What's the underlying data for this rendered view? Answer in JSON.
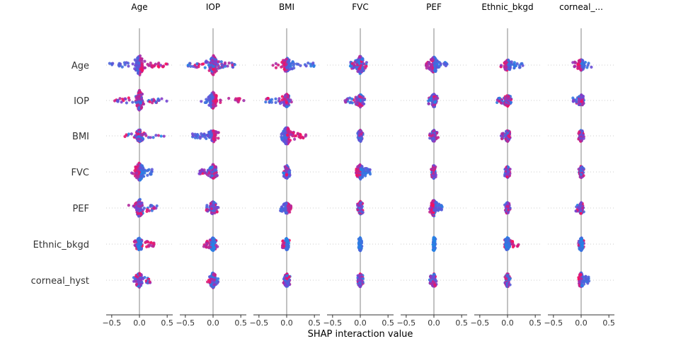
{
  "chart_data": {
    "type": "scatter",
    "subtype": "shap-interaction-beeswarm-matrix",
    "xlabel": "SHAP interaction value",
    "xlim": [
      -0.6,
      0.6
    ],
    "xticks": [
      -0.5,
      0.0,
      0.5
    ],
    "xtick_labels": [
      "−0.5",
      "0.0",
      "0.5"
    ],
    "column_titles": [
      "Age",
      "IOP",
      "BMI",
      "FVC",
      "PEF",
      "Ethnic_bkgd",
      "corneal_..."
    ],
    "row_labels": [
      "Age",
      "IOP",
      "BMI",
      "FVC",
      "PEF",
      "Ethnic_bkgd",
      "corneal_hyst"
    ],
    "grid": "dotted horizontal row guides",
    "colors": {
      "low": "#1e88e5",
      "mid": "#7b3fd2",
      "high": "#ff0d57",
      "zero_line": "#999999"
    },
    "cells": [
      [
        {
          "min": -0.58,
          "max": 0.55,
          "spread": 0.9,
          "blue_side": "left"
        },
        {
          "min": -0.45,
          "max": 0.45,
          "spread": 0.9,
          "blue_side": "mixed"
        },
        {
          "min": -0.25,
          "max": 0.5,
          "spread": 0.6,
          "blue_side": "right"
        },
        {
          "min": -0.18,
          "max": 0.12,
          "spread": 0.8,
          "blue_side": "mixed"
        },
        {
          "min": -0.15,
          "max": 0.25,
          "spread": 0.7,
          "blue_side": "right"
        },
        {
          "min": -0.12,
          "max": 0.28,
          "spread": 0.4,
          "blue_side": "right"
        },
        {
          "min": -0.15,
          "max": 0.2,
          "spread": 0.4,
          "blue_side": "right"
        }
      ],
      [
        {
          "min": -0.5,
          "max": 0.5,
          "spread": 0.9,
          "blue_side": "mixed"
        },
        {
          "min": -0.25,
          "max": 0.6,
          "spread": 0.7,
          "blue_side": "left"
        },
        {
          "min": -0.38,
          "max": 0.12,
          "spread": 0.5,
          "blue_side": "mixed"
        },
        {
          "min": -0.28,
          "max": 0.08,
          "spread": 0.5,
          "blue_side": "mixed"
        },
        {
          "min": -0.1,
          "max": 0.08,
          "spread": 0.5,
          "blue_side": "mixed"
        },
        {
          "min": -0.22,
          "max": 0.08,
          "spread": 0.4,
          "blue_side": "mixed"
        },
        {
          "min": -0.15,
          "max": 0.05,
          "spread": 0.4,
          "blue_side": "mixed"
        }
      ],
      [
        {
          "min": -0.28,
          "max": 0.5,
          "spread": 0.5,
          "blue_side": "mixed"
        },
        {
          "min": -0.38,
          "max": 0.12,
          "spread": 0.5,
          "blue_side": "left"
        },
        {
          "min": -0.12,
          "max": 0.35,
          "spread": 0.8,
          "blue_side": "left"
        },
        {
          "min": -0.05,
          "max": 0.05,
          "spread": 0.4,
          "blue_side": "mixed"
        },
        {
          "min": -0.08,
          "max": 0.08,
          "spread": 0.4,
          "blue_side": "mixed"
        },
        {
          "min": -0.12,
          "max": 0.05,
          "spread": 0.4,
          "blue_side": "mixed"
        },
        {
          "min": -0.05,
          "max": 0.05,
          "spread": 0.4,
          "blue_side": "mixed"
        }
      ],
      [
        {
          "min": -0.15,
          "max": 0.25,
          "spread": 0.8,
          "blue_side": "right"
        },
        {
          "min": -0.25,
          "max": 0.08,
          "spread": 0.6,
          "blue_side": "mixed"
        },
        {
          "min": -0.06,
          "max": 0.06,
          "spread": 0.5,
          "blue_side": "mixed"
        },
        {
          "min": -0.08,
          "max": 0.18,
          "spread": 0.6,
          "blue_side": "right"
        },
        {
          "min": -0.05,
          "max": 0.05,
          "spread": 0.5,
          "blue_side": "mixed"
        },
        {
          "min": -0.05,
          "max": 0.05,
          "spread": 0.4,
          "blue_side": "mixed"
        },
        {
          "min": -0.05,
          "max": 0.05,
          "spread": 0.4,
          "blue_side": "mixed"
        }
      ],
      [
        {
          "min": -0.2,
          "max": 0.32,
          "spread": 0.8,
          "blue_side": "mixed"
        },
        {
          "min": -0.12,
          "max": 0.1,
          "spread": 0.5,
          "blue_side": "mixed"
        },
        {
          "min": -0.12,
          "max": 0.08,
          "spread": 0.4,
          "blue_side": "left"
        },
        {
          "min": -0.05,
          "max": 0.05,
          "spread": 0.5,
          "blue_side": "mixed"
        },
        {
          "min": -0.08,
          "max": 0.15,
          "spread": 0.7,
          "blue_side": "right"
        },
        {
          "min": -0.05,
          "max": 0.05,
          "spread": 0.4,
          "blue_side": "mixed"
        },
        {
          "min": -0.1,
          "max": 0.05,
          "spread": 0.4,
          "blue_side": "mixed"
        }
      ],
      [
        {
          "min": -0.12,
          "max": 0.28,
          "spread": 0.5,
          "blue_side": "center"
        },
        {
          "min": -0.18,
          "max": 0.08,
          "spread": 0.5,
          "blue_side": "center"
        },
        {
          "min": -0.08,
          "max": 0.05,
          "spread": 0.4,
          "blue_side": "center"
        },
        {
          "min": -0.03,
          "max": 0.03,
          "spread": 0.5,
          "blue_side": "center"
        },
        {
          "min": -0.03,
          "max": 0.03,
          "spread": 0.5,
          "blue_side": "center"
        },
        {
          "min": -0.05,
          "max": 0.2,
          "spread": 0.5,
          "blue_side": "center"
        },
        {
          "min": -0.05,
          "max": 0.05,
          "spread": 0.5,
          "blue_side": "center"
        }
      ],
      [
        {
          "min": -0.12,
          "max": 0.2,
          "spread": 0.6,
          "blue_side": "mixed"
        },
        {
          "min": -0.12,
          "max": 0.1,
          "spread": 0.6,
          "blue_side": "mixed"
        },
        {
          "min": -0.06,
          "max": 0.06,
          "spread": 0.5,
          "blue_side": "mixed"
        },
        {
          "min": -0.05,
          "max": 0.05,
          "spread": 0.5,
          "blue_side": "mixed"
        },
        {
          "min": -0.08,
          "max": 0.05,
          "spread": 0.5,
          "blue_side": "mixed"
        },
        {
          "min": -0.05,
          "max": 0.05,
          "spread": 0.5,
          "blue_side": "mixed"
        },
        {
          "min": -0.05,
          "max": 0.15,
          "spread": 0.6,
          "blue_side": "right"
        }
      ]
    ]
  }
}
